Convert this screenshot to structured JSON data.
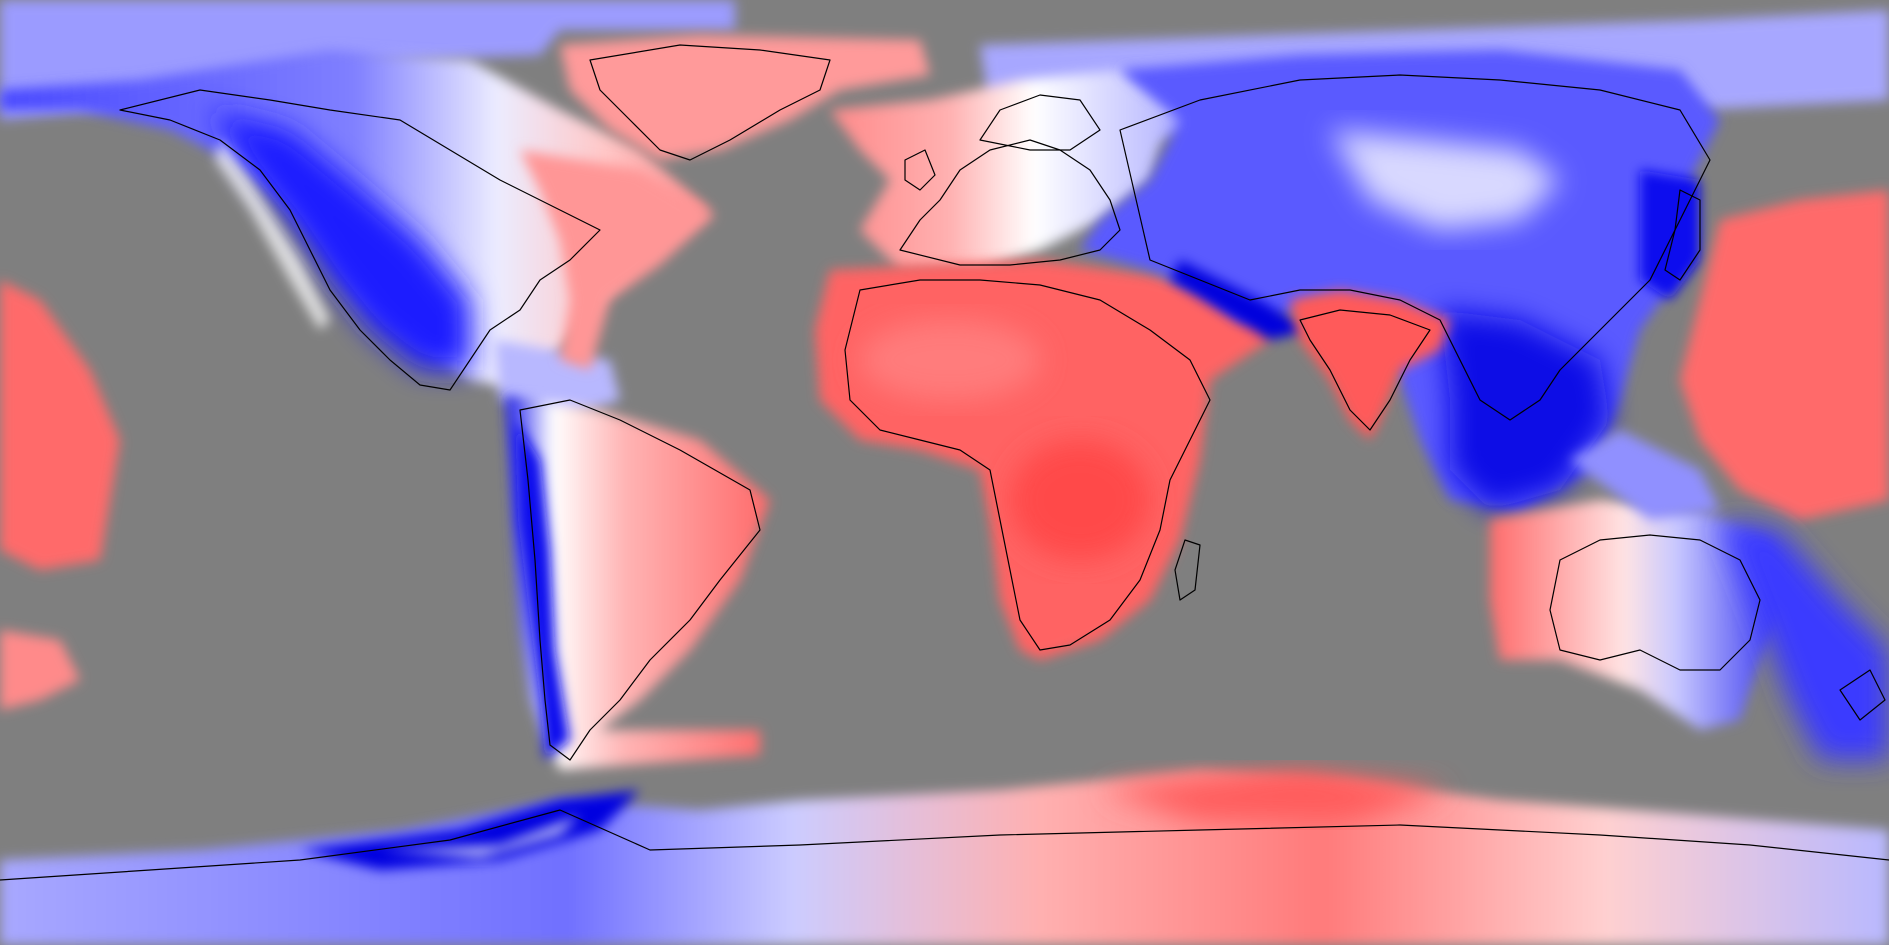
{
  "map": {
    "projection": "equirectangular",
    "background_color": "#7f7f7f",
    "coastline_color": "#000000",
    "color_scale": [
      "#0000ff",
      "#ffffff",
      "#ff0000"
    ],
    "regions": [
      {
        "name": "north-america",
        "tone": "mixed-blue-red"
      },
      {
        "name": "greenland",
        "tone": "light-red"
      },
      {
        "name": "south-america",
        "tone": "blue-west-red-east"
      },
      {
        "name": "europe",
        "tone": "light-red"
      },
      {
        "name": "africa",
        "tone": "red"
      },
      {
        "name": "asia",
        "tone": "blue"
      },
      {
        "name": "india",
        "tone": "red"
      },
      {
        "name": "australia",
        "tone": "red-west-blue-east"
      },
      {
        "name": "antarctica",
        "tone": "red-east-blue-west"
      },
      {
        "name": "north-pacific",
        "tone": "red"
      }
    ]
  }
}
